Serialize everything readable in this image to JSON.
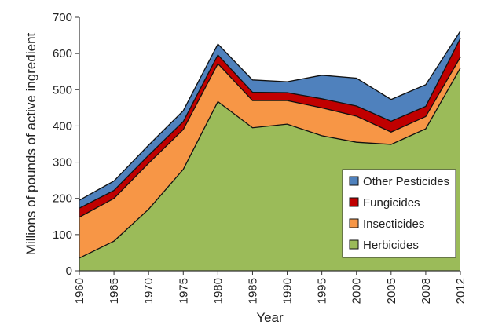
{
  "chart_data": {
    "type": "area",
    "stacked": true,
    "x": [
      "1960",
      "1965",
      "1970",
      "1975",
      "1980",
      "1985",
      "1990",
      "1995",
      "2000",
      "2005",
      "2008",
      "2012"
    ],
    "xlabel": "Year",
    "ylabel": "Millions of pounds of active ingredient",
    "ylim": [
      0,
      700
    ],
    "yticks": [
      0,
      100,
      200,
      300,
      400,
      500,
      600,
      700
    ],
    "grid": false,
    "legend_position": "bottom-right",
    "series": [
      {
        "name": "Herbicides",
        "color": "#9BBB59",
        "values": [
          35,
          82,
          170,
          280,
          467,
          395,
          405,
          373,
          355,
          349,
          392,
          560
        ]
      },
      {
        "name": "Insecticides",
        "color": "#F79646",
        "values": [
          113,
          118,
          127,
          110,
          105,
          75,
          65,
          77,
          72,
          34,
          34,
          30
        ]
      },
      {
        "name": "Fungicides",
        "color": "#C00000",
        "values": [
          25,
          22,
          22,
          22,
          24,
          23,
          22,
          25,
          28,
          30,
          28,
          52
        ]
      },
      {
        "name": "Other Pesticides",
        "color": "#4F81BD",
        "values": [
          22,
          26,
          28,
          30,
          30,
          34,
          30,
          65,
          77,
          60,
          60,
          20
        ]
      }
    ],
    "legend_order": [
      "Other Pesticides",
      "Fungicides",
      "Insecticides",
      "Herbicides"
    ]
  }
}
